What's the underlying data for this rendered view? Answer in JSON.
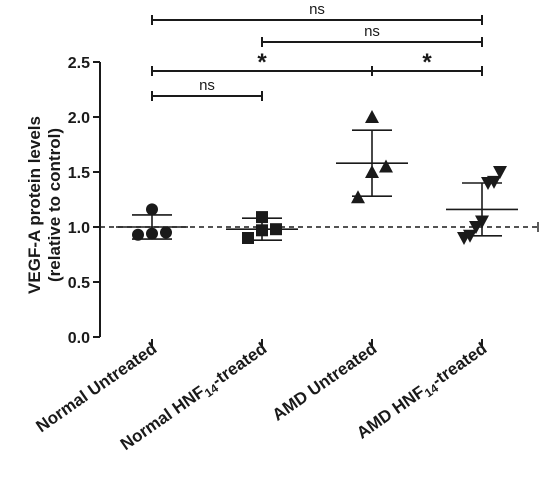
{
  "chart_data": {
    "type": "scatter",
    "ylabel_line1": "VEGF-A protein levels",
    "ylabel_line2": "(relative to control)",
    "ylim": [
      0.0,
      2.5
    ],
    "yticks": [
      "0.0",
      "0.5",
      "1.0",
      "1.5",
      "2.0",
      "2.5"
    ],
    "reference_line": 1.0,
    "groups": [
      {
        "label_main": "Normal Untreated",
        "label_sub": "",
        "label_tail": "",
        "marker": "circle",
        "mean": 1.0,
        "sd": 0.11,
        "points": [
          0.93,
          0.94,
          0.95,
          1.16
        ]
      },
      {
        "label_main": "Normal HNF",
        "label_sub": "14",
        "label_tail": "-treated",
        "marker": "square",
        "mean": 0.98,
        "sd": 0.1,
        "points": [
          0.9,
          0.97,
          0.98,
          1.09
        ]
      },
      {
        "label_main": "AMD Untreated",
        "label_sub": "",
        "label_tail": "",
        "marker": "triangle-up",
        "mean": 1.58,
        "sd": 0.3,
        "points": [
          1.27,
          1.5,
          1.55,
          2.0
        ]
      },
      {
        "label_main": "AMD HNF",
        "label_sub": "14",
        "label_tail": "-treated",
        "marker": "triangle-down",
        "mean": 1.16,
        "sd": 0.24,
        "points": [
          0.9,
          0.92,
          1.0,
          1.05,
          1.4,
          1.41,
          1.5
        ]
      }
    ],
    "comparisons": [
      {
        "from": 0,
        "to": 3,
        "label": "ns"
      },
      {
        "from": 1,
        "to": 3,
        "label": "ns"
      },
      {
        "from": 0,
        "to": 2,
        "label": "*"
      },
      {
        "from": 2,
        "to": 3,
        "label": "*"
      },
      {
        "from": 0,
        "to": 1,
        "label": "ns"
      }
    ],
    "colors": {
      "ink": "#1a1a1a",
      "background": "#ffffff"
    }
  }
}
